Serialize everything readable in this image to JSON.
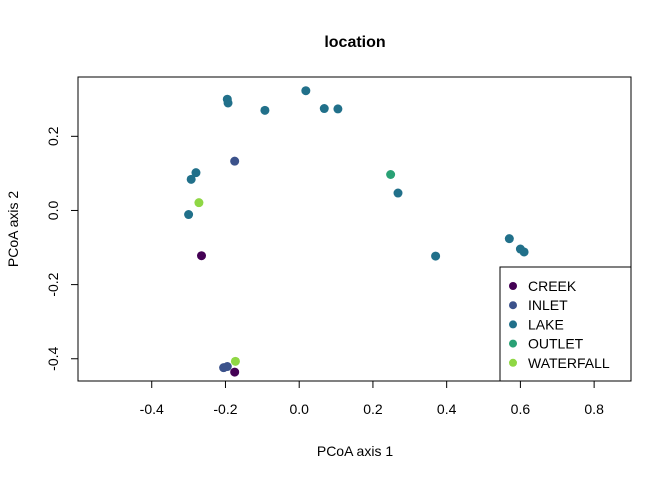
{
  "chart_data": {
    "type": "scatter",
    "title": "location",
    "xlabel": "PCoA axis 1",
    "ylabel": "PCoA axis 2",
    "xlim": [
      -0.6,
      0.9
    ],
    "ylim": [
      -0.46,
      0.36
    ],
    "x_ticks": [
      -0.4,
      -0.2,
      0.0,
      0.2,
      0.4,
      0.6,
      0.8
    ],
    "x_tick_labels": [
      "-0.4",
      "-0.2",
      "0.0",
      "0.2",
      "0.4",
      "0.6",
      "0.8"
    ],
    "y_ticks": [
      -0.4,
      -0.2,
      0.0,
      0.2
    ],
    "y_tick_labels": [
      "-0.4",
      "-0.2",
      "0.0",
      "0.2"
    ],
    "grid": false,
    "legend_position": "bottom-right",
    "series": [
      {
        "name": "CREEK",
        "color": "#440154",
        "points": [
          [
            -0.265,
            -0.122
          ],
          [
            -0.175,
            -0.436
          ]
        ]
      },
      {
        "name": "INLET",
        "color": "#3b528b",
        "points": [
          [
            -0.175,
            0.133
          ],
          [
            -0.205,
            -0.424
          ],
          [
            -0.195,
            -0.421
          ]
        ]
      },
      {
        "name": "LAKE",
        "color": "#21708a",
        "points": [
          [
            -0.195,
            0.3
          ],
          [
            -0.193,
            0.29
          ],
          [
            -0.093,
            0.27
          ],
          [
            0.018,
            0.323
          ],
          [
            0.068,
            0.275
          ],
          [
            0.105,
            0.274
          ],
          [
            -0.28,
            0.102
          ],
          [
            -0.293,
            0.084
          ],
          [
            -0.3,
            -0.011
          ],
          [
            0.268,
            0.047
          ],
          [
            0.37,
            -0.123
          ],
          [
            0.57,
            -0.076
          ],
          [
            0.6,
            -0.104
          ],
          [
            0.61,
            -0.112
          ]
        ]
      },
      {
        "name": "OUTLET",
        "color": "#29a175",
        "points": [
          [
            0.248,
            0.097
          ]
        ]
      },
      {
        "name": "WATERFALL",
        "color": "#8fd744",
        "points": [
          [
            -0.272,
            0.021
          ],
          [
            -0.173,
            -0.407
          ]
        ]
      }
    ]
  }
}
